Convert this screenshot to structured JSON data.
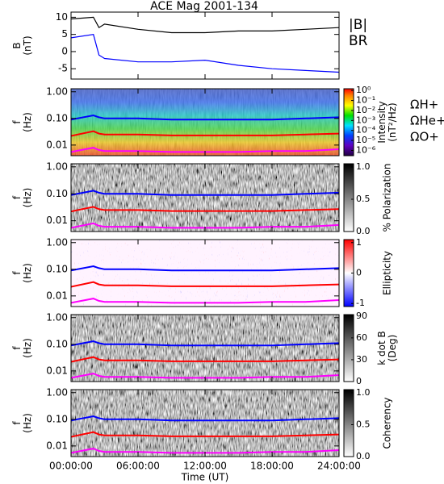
{
  "chart_data": [
    {
      "type": "line",
      "title": "ACE Mag 2001-134",
      "ylabel": [
        "B",
        "(nT)"
      ],
      "x": [
        0,
        2,
        2.5,
        3,
        6,
        9,
        12,
        15,
        18,
        21,
        24
      ],
      "xlim": [
        0,
        24
      ],
      "ylim": [
        -8,
        11.5
      ],
      "yticks": [
        -5,
        0,
        5,
        10
      ],
      "series": [
        {
          "name": "|B|",
          "color": "#000000",
          "values": [
            9.5,
            10,
            7,
            8,
            6.5,
            5.5,
            5.5,
            6,
            6,
            6.5,
            7
          ]
        },
        {
          "name": "BR",
          "color": "#0000ff",
          "values": [
            4,
            5,
            -1,
            -2,
            -3,
            -3,
            -2.5,
            -4,
            -5,
            -5.5,
            -6
          ]
        }
      ]
    },
    {
      "type": "spectrogram",
      "ylabel": [
        "f",
        "(Hz)"
      ],
      "log_y": true,
      "colormap": "rainbow",
      "x": [
        0,
        2,
        2.5,
        3,
        6,
        9,
        12,
        15,
        18,
        21,
        24
      ],
      "xlim": [
        0,
        24
      ],
      "ylim": [
        0.004,
        1.3
      ],
      "yticks": [
        {
          "value": 0.01,
          "label": "0.01"
        },
        {
          "value": 0.1,
          "label": "0.10"
        },
        {
          "value": 1,
          "label": "1.00"
        }
      ],
      "colorbar": {
        "label": [
          "Intensity",
          "(nT²/Hz)"
        ],
        "log": true,
        "lim": [
          3e-07,
          1.5
        ],
        "ticks": [
          {
            "value": 1,
            "label": "10⁰"
          },
          {
            "value": 0.1,
            "label": "10⁻¹"
          },
          {
            "value": 0.01,
            "label": "10⁻²"
          },
          {
            "value": 0.001,
            "label": "10⁻³"
          },
          {
            "value": 0.0001,
            "label": "10⁻⁴"
          },
          {
            "value": 1e-05,
            "label": "10⁻⁵"
          },
          {
            "value": 1e-06,
            "label": "10⁻⁶"
          }
        ]
      },
      "series": [
        {
          "name": "ΩH+",
          "color": "#0000ff",
          "values": [
            0.09,
            0.13,
            0.11,
            0.1,
            0.1,
            0.09,
            0.09,
            0.09,
            0.09,
            0.1,
            0.11
          ]
        },
        {
          "name": "ΩHe+",
          "color": "#ff0000",
          "values": [
            0.022,
            0.033,
            0.027,
            0.025,
            0.025,
            0.023,
            0.023,
            0.023,
            0.023,
            0.025,
            0.027
          ]
        },
        {
          "name": "ΩO+",
          "color": "#ff00ff",
          "values": [
            0.0055,
            0.008,
            0.0065,
            0.006,
            0.006,
            0.0055,
            0.0055,
            0.0055,
            0.006,
            0.006,
            0.007
          ]
        }
      ]
    },
    {
      "type": "spectrogram",
      "ylabel": [
        "f",
        "(Hz)"
      ],
      "log_y": true,
      "colormap": "gray",
      "x": [
        0,
        2,
        2.5,
        3,
        6,
        9,
        12,
        15,
        18,
        21,
        24
      ],
      "xlim": [
        0,
        24
      ],
      "ylim": [
        0.004,
        1.3
      ],
      "yticks": [
        {
          "value": 0.01,
          "label": "0.01"
        },
        {
          "value": 0.1,
          "label": "0.10"
        },
        {
          "value": 1,
          "label": "1.00"
        }
      ],
      "colorbar": {
        "label": [
          "% Polarization"
        ],
        "lim": [
          0,
          1.05
        ],
        "ticks": [
          {
            "value": 0,
            "label": "0.0"
          },
          {
            "value": 0.5,
            "label": "0.5"
          },
          {
            "value": 1,
            "label": "1.0"
          }
        ]
      },
      "series": [
        {
          "color": "#0000ff",
          "values": [
            0.09,
            0.13,
            0.11,
            0.1,
            0.1,
            0.09,
            0.09,
            0.09,
            0.09,
            0.1,
            0.11
          ]
        },
        {
          "color": "#ff0000",
          "values": [
            0.022,
            0.033,
            0.027,
            0.025,
            0.025,
            0.023,
            0.023,
            0.023,
            0.023,
            0.025,
            0.027
          ]
        },
        {
          "color": "#ff00ff",
          "values": [
            0.0055,
            0.008,
            0.0065,
            0.006,
            0.006,
            0.0055,
            0.0055,
            0.0055,
            0.006,
            0.006,
            0.007
          ]
        }
      ]
    },
    {
      "type": "spectrogram",
      "ylabel": [
        "f",
        "(Hz)"
      ],
      "log_y": true,
      "colormap": "bwr",
      "x": [
        0,
        2,
        2.5,
        3,
        6,
        9,
        12,
        15,
        18,
        21,
        24
      ],
      "xlim": [
        0,
        24
      ],
      "ylim": [
        0.004,
        1.3
      ],
      "yticks": [
        {
          "value": 0.01,
          "label": "0.01"
        },
        {
          "value": 0.1,
          "label": "0.10"
        },
        {
          "value": 1,
          "label": "1.00"
        }
      ],
      "colorbar": {
        "label": [
          "Ellipticity"
        ],
        "lim": [
          -1.1,
          1.1
        ],
        "ticks": [
          -1,
          0,
          1
        ]
      },
      "series": [
        {
          "color": "#0000ff",
          "values": [
            0.09,
            0.13,
            0.11,
            0.1,
            0.1,
            0.09,
            0.09,
            0.09,
            0.09,
            0.1,
            0.11
          ]
        },
        {
          "color": "#ff0000",
          "values": [
            0.022,
            0.033,
            0.027,
            0.025,
            0.025,
            0.023,
            0.023,
            0.023,
            0.023,
            0.025,
            0.027
          ]
        },
        {
          "color": "#ff00ff",
          "values": [
            0.0055,
            0.008,
            0.0065,
            0.006,
            0.006,
            0.0055,
            0.0055,
            0.0055,
            0.006,
            0.006,
            0.007
          ]
        }
      ]
    },
    {
      "type": "spectrogram",
      "ylabel": [
        "f",
        "(Hz)"
      ],
      "log_y": true,
      "colormap": "gray",
      "x": [
        0,
        2,
        2.5,
        3,
        6,
        9,
        12,
        15,
        18,
        21,
        24
      ],
      "xlim": [
        0,
        24
      ],
      "ylim": [
        0.004,
        1.3
      ],
      "yticks": [
        {
          "value": 0.01,
          "label": "0.01"
        },
        {
          "value": 0.1,
          "label": "0.10"
        },
        {
          "value": 1,
          "label": "1.00"
        }
      ],
      "colorbar": {
        "label": [
          "k dot B",
          "(Deg)"
        ],
        "lim": [
          0,
          92
        ],
        "ticks": [
          0,
          30,
          60,
          90
        ]
      },
      "series": [
        {
          "color": "#0000ff",
          "values": [
            0.09,
            0.13,
            0.11,
            0.1,
            0.1,
            0.09,
            0.09,
            0.09,
            0.09,
            0.1,
            0.11
          ]
        },
        {
          "color": "#ff0000",
          "values": [
            0.022,
            0.033,
            0.027,
            0.025,
            0.025,
            0.023,
            0.023,
            0.023,
            0.023,
            0.025,
            0.027
          ]
        },
        {
          "color": "#ff00ff",
          "values": [
            0.0055,
            0.008,
            0.0065,
            0.006,
            0.006,
            0.0055,
            0.0055,
            0.0055,
            0.006,
            0.006,
            0.007
          ]
        }
      ]
    },
    {
      "type": "spectrogram",
      "ylabel": [
        "f",
        "(Hz)"
      ],
      "log_y": true,
      "colormap": "gray",
      "x": [
        0,
        2,
        2.5,
        3,
        6,
        9,
        12,
        15,
        18,
        21,
        24
      ],
      "xlim": [
        0,
        24
      ],
      "ylim": [
        0.004,
        1.3
      ],
      "yticks": [
        {
          "value": 0.01,
          "label": "0.01"
        },
        {
          "value": 0.1,
          "label": "0.10"
        },
        {
          "value": 1,
          "label": "1.00"
        }
      ],
      "colorbar": {
        "label": [
          "Coherency"
        ],
        "lim": [
          0,
          1.05
        ],
        "ticks": [
          {
            "value": 0,
            "label": "0.0"
          },
          {
            "value": 0.5,
            "label": "0.5"
          },
          {
            "value": 1,
            "label": "1.0"
          }
        ]
      },
      "xlabel": "Time (UT)",
      "xticks": [
        {
          "value": 0,
          "label": "00:00:00"
        },
        {
          "value": 6,
          "label": "06:00:00"
        },
        {
          "value": 12,
          "label": "12:00:00"
        },
        {
          "value": 18,
          "label": "18:00:00"
        },
        {
          "value": 24,
          "label": "24:00:00"
        }
      ],
      "series": [
        {
          "color": "#0000ff",
          "values": [
            0.09,
            0.13,
            0.11,
            0.1,
            0.1,
            0.09,
            0.09,
            0.09,
            0.09,
            0.1,
            0.11
          ]
        },
        {
          "color": "#ff0000",
          "values": [
            0.022,
            0.033,
            0.027,
            0.025,
            0.025,
            0.023,
            0.023,
            0.023,
            0.023,
            0.025,
            0.027
          ]
        },
        {
          "color": "#ff00ff",
          "values": [
            0.0055,
            0.008,
            0.0065,
            0.006,
            0.006,
            0.0055,
            0.0055,
            0.0055,
            0.006,
            0.006,
            0.007
          ]
        }
      ]
    }
  ]
}
